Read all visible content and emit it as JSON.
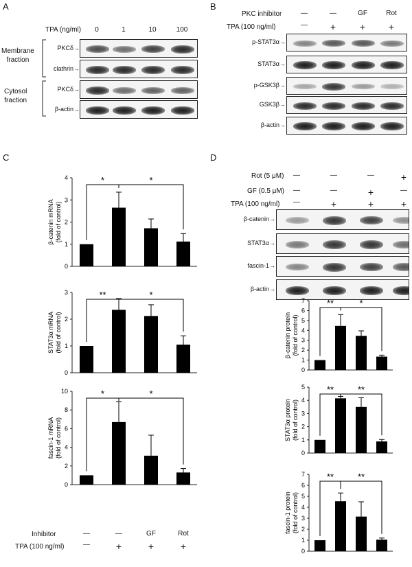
{
  "panels": {
    "A": "A",
    "B": "B",
    "C": "C",
    "D": "D"
  },
  "panelA": {
    "tpa_label": "TPA (ng/ml)",
    "doses": [
      "0",
      "1",
      "10",
      "100"
    ],
    "membrane_fraction": "Membrane\nfraction",
    "cytosol_fraction": "Cytosol\nfraction",
    "rows": [
      {
        "label": "PKCδ",
        "intensity": [
          0.75,
          0.6,
          0.8,
          0.9
        ]
      },
      {
        "label": "clathrin",
        "intensity": [
          0.9,
          0.9,
          0.9,
          0.9
        ]
      },
      {
        "label": "PKCδ",
        "intensity": [
          0.9,
          0.6,
          0.65,
          0.65
        ]
      },
      {
        "label": "β-actin",
        "intensity": [
          0.95,
          0.95,
          0.95,
          0.95
        ]
      }
    ]
  },
  "panelB": {
    "pkc_inhibitor_label": "PKC inhibitor",
    "tpa_label": "TPA (100 ng/ml)",
    "inhibitor_row": [
      "—",
      "—",
      "GF",
      "Rot"
    ],
    "tpa_row": [
      "—",
      "+",
      "+",
      "+"
    ],
    "rows": [
      {
        "label": "p-STAT3α",
        "intensity": [
          0.5,
          0.7,
          0.7,
          0.55
        ]
      },
      {
        "label": "STAT3α",
        "intensity": [
          0.95,
          0.95,
          0.95,
          0.95
        ]
      },
      {
        "label": "p-GSK3β",
        "intensity": [
          0.35,
          0.85,
          0.4,
          0.3
        ]
      },
      {
        "label": "GSK3β",
        "intensity": [
          0.9,
          0.9,
          0.9,
          0.9
        ]
      },
      {
        "label": "β-actin",
        "intensity": [
          0.95,
          0.95,
          0.95,
          0.95
        ]
      }
    ]
  },
  "panelC": {
    "inhibitor_label": "Inhibitor",
    "tpa_label": "TPA (100 ng/ml)",
    "inhibitor_row": [
      "—",
      "—",
      "GF",
      "Rot"
    ],
    "tpa_row": [
      "—",
      "+",
      "+",
      "+"
    ]
  },
  "panelD": {
    "rot_label": "Rot (5 μM)",
    "gf_label": "GF (0.5 μM)",
    "tpa_label": "TPA (100 ng/ml)",
    "rot_row": [
      "—",
      "—",
      "—",
      "+"
    ],
    "gf_row": [
      "—",
      "—",
      "+",
      "—"
    ],
    "tpa_row": [
      "—",
      "+",
      "+",
      "+"
    ],
    "rows": [
      {
        "label": "β-catenin",
        "intensity": [
          0.4,
          0.85,
          0.8,
          0.45
        ]
      },
      {
        "label": "STAT3α",
        "intensity": [
          0.55,
          0.85,
          0.85,
          0.6
        ]
      },
      {
        "label": "fascin-1",
        "intensity": [
          0.5,
          0.85,
          0.8,
          0.7
        ]
      },
      {
        "label": "β-actin",
        "intensity": [
          0.95,
          0.95,
          0.95,
          0.95
        ]
      }
    ]
  },
  "chart_data": [
    {
      "type": "bar",
      "panel": "C",
      "ylabel": "β-catenin mRNA\n(fold of control)",
      "ylim": [
        0,
        4
      ],
      "yticks": [
        0,
        1,
        2,
        3,
        4
      ],
      "values": [
        1.0,
        2.65,
        1.72,
        1.12
      ],
      "errors": [
        0,
        0.7,
        0.42,
        0.36
      ],
      "sig": [
        {
          "text": "*",
          "from": 0,
          "to": 1
        },
        {
          "text": "*",
          "from": 1,
          "to": 3
        }
      ]
    },
    {
      "type": "bar",
      "panel": "C",
      "ylabel": "STAT3α mRNA\n(fold of control)",
      "ylim": [
        0,
        3
      ],
      "yticks": [
        0,
        1,
        2,
        3
      ],
      "values": [
        1.0,
        2.35,
        2.12,
        1.05
      ],
      "errors": [
        0,
        0.42,
        0.42,
        0.33
      ],
      "sig": [
        {
          "text": "**",
          "from": 0,
          "to": 1
        },
        {
          "text": "*",
          "from": 1,
          "to": 3
        }
      ]
    },
    {
      "type": "bar",
      "panel": "C",
      "ylabel": "fascin-1 mRNA\n(fold of control)",
      "ylim": [
        0,
        10
      ],
      "yticks": [
        0,
        2,
        4,
        6,
        8,
        10
      ],
      "values": [
        1.0,
        6.7,
        3.1,
        1.3
      ],
      "errors": [
        0,
        2.2,
        2.2,
        0.42
      ],
      "sig": [
        {
          "text": "*",
          "from": 0,
          "to": 1
        },
        {
          "text": "*",
          "from": 1,
          "to": 3
        }
      ]
    },
    {
      "type": "bar",
      "panel": "D",
      "ylabel": "β-catenin protein\n(fold of control)",
      "ylim": [
        0,
        7
      ],
      "yticks": [
        0,
        1,
        2,
        3,
        4,
        5,
        6,
        7
      ],
      "values": [
        1.0,
        4.45,
        3.45,
        1.35
      ],
      "errors": [
        0,
        1.15,
        0.5,
        0.15
      ],
      "sig": [
        {
          "text": "**",
          "from": 0,
          "to": 1
        },
        {
          "text": "*",
          "from": 1,
          "to": 3
        }
      ]
    },
    {
      "type": "bar",
      "panel": "D",
      "ylabel": "STAT3α protein\n(fold of control)",
      "ylim": [
        0,
        5
      ],
      "yticks": [
        0,
        1,
        2,
        3,
        4,
        5
      ],
      "values": [
        1.0,
        4.15,
        3.5,
        0.88
      ],
      "errors": [
        0,
        0.15,
        0.7,
        0.15
      ],
      "sig": [
        {
          "text": "**",
          "from": 0,
          "to": 1
        },
        {
          "text": "**",
          "from": 1,
          "to": 3
        }
      ]
    },
    {
      "type": "bar",
      "panel": "D",
      "ylabel": "fascin-1 protein\n(fold of control)",
      "ylim": [
        0,
        7
      ],
      "yticks": [
        0,
        1,
        2,
        3,
        4,
        5,
        6,
        7
      ],
      "values": [
        1.0,
        4.55,
        3.15,
        1.05
      ],
      "errors": [
        0,
        0.75,
        1.35,
        0.15
      ],
      "sig": [
        {
          "text": "**",
          "from": 0,
          "to": 1
        },
        {
          "text": "**",
          "from": 1,
          "to": 3
        }
      ]
    }
  ]
}
